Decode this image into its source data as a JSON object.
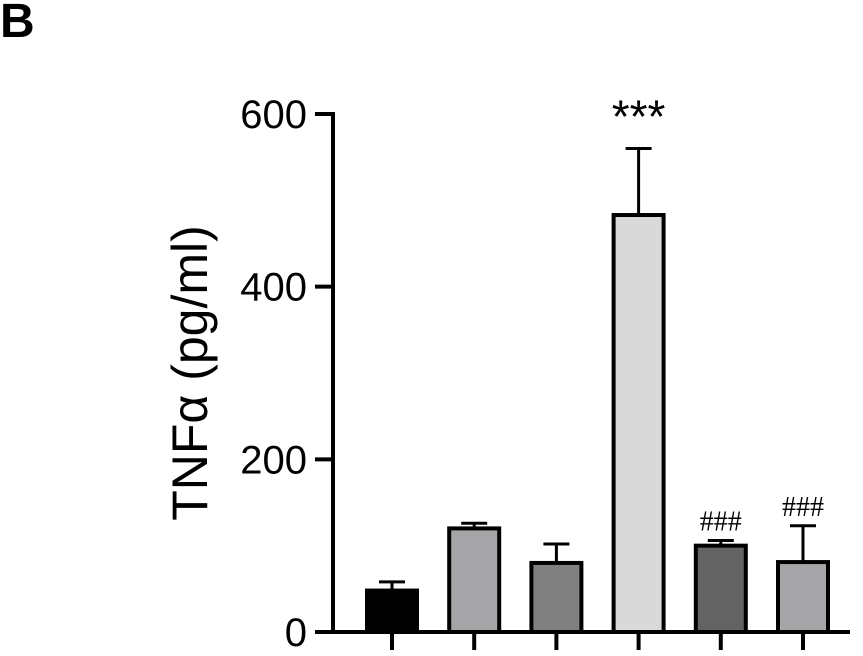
{
  "panel_label": "B",
  "chart_data": {
    "type": "bar",
    "title": "",
    "xlabel": "",
    "ylabel": "TNFα (pg/ml)",
    "ylim": [
      0,
      600
    ],
    "yticks": [
      "0",
      "200",
      "400",
      "600"
    ],
    "categories": [
      "",
      "",
      "",
      "",
      "",
      ""
    ],
    "values": [
      48,
      120,
      80,
      483,
      100,
      81
    ],
    "errors": [
      10,
      6,
      22,
      77,
      6,
      42
    ],
    "bar_colors": [
      "#000000",
      "#a5a5a8",
      "#808080",
      "#d9d9d9",
      "#636363",
      "#a5a5a8"
    ],
    "annotations": [
      "",
      "",
      "",
      "***",
      "###",
      "###"
    ],
    "grid": false,
    "legend": "none"
  }
}
